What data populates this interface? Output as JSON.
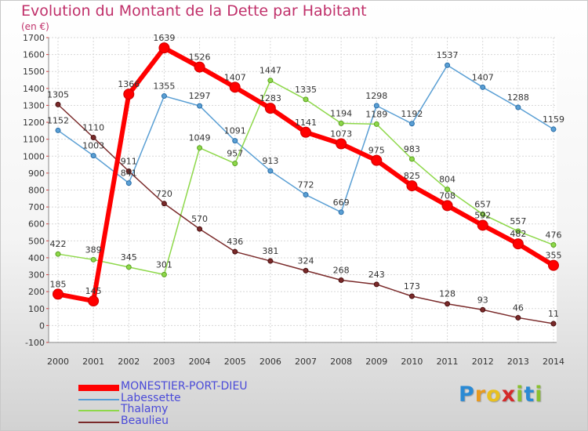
{
  "chart_data": {
    "type": "line",
    "title": "Evolution du Montant de la Dette par Habitant",
    "subtitle": "(en €)",
    "x": [
      "2000",
      "2001",
      "2002",
      "2003",
      "2004",
      "2005",
      "2006",
      "2007",
      "2008",
      "2009",
      "2010",
      "2011",
      "2012",
      "2013",
      "2014"
    ],
    "y_ticks": [
      "-100",
      "0",
      "100",
      "200",
      "300",
      "400",
      "500",
      "600",
      "700",
      "800",
      "900",
      "1000",
      "1100",
      "1200",
      "1300",
      "1400",
      "1500",
      "1600",
      "1700"
    ],
    "ylim": [
      -100,
      1700
    ],
    "grid": true,
    "legend_position": "bottom-left",
    "series": [
      {
        "name": "MONESTIER-PORT-DIEU",
        "color": "#ff0000",
        "values": [
          185,
          145,
          1366,
          1639,
          1526,
          1407,
          1283,
          1141,
          1073,
          975,
          825,
          708,
          592,
          482,
          355
        ],
        "labels": [
          "185",
          "145",
          "1366",
          "1639",
          "1526",
          "1407",
          "1283",
          "1141",
          "1073",
          "975",
          "825",
          "708",
          "592",
          "482",
          "355"
        ]
      },
      {
        "name": "Labessette",
        "color": "#5a9fd4",
        "values": [
          1152,
          1003,
          841,
          1355,
          1297,
          1091,
          913,
          772,
          669,
          1298,
          1192,
          1537,
          1407,
          1288,
          1159
        ],
        "labels": [
          "1152",
          "1003",
          "841",
          "1355",
          "1297",
          "1091",
          "913",
          "772",
          "669",
          "1298",
          "1192",
          "1537",
          "1407",
          "1288",
          "1159"
        ]
      },
      {
        "name": "Thalamy",
        "color": "#8ed84a",
        "values": [
          422,
          389,
          345,
          301,
          1049,
          957,
          1447,
          1335,
          1194,
          1189,
          983,
          804,
          657,
          557,
          476
        ],
        "labels": [
          "422",
          "389",
          "345",
          "301",
          "1049",
          "957",
          "1447",
          "1335",
          "1194",
          "1189",
          "983",
          "804",
          "657",
          "557",
          "476"
        ]
      },
      {
        "name": "Beaulieu",
        "color": "#7a2a2a",
        "values": [
          1305,
          1110,
          911,
          720,
          570,
          436,
          381,
          324,
          268,
          243,
          173,
          128,
          93,
          46,
          11
        ],
        "labels": [
          "1305",
          "1110",
          "911",
          "720",
          "570",
          "436",
          "381",
          "324",
          "268",
          "243",
          "173",
          "128",
          "93",
          "46",
          "11"
        ]
      }
    ]
  },
  "logo": {
    "letters": [
      "P",
      "r",
      "o",
      "x",
      "i",
      "t",
      "i"
    ],
    "colors": [
      "#2a8ad4",
      "#e89a20",
      "#e8c020",
      "#d42a2a",
      "#8ac030",
      "#2a8ad4",
      "#8ac030"
    ]
  }
}
